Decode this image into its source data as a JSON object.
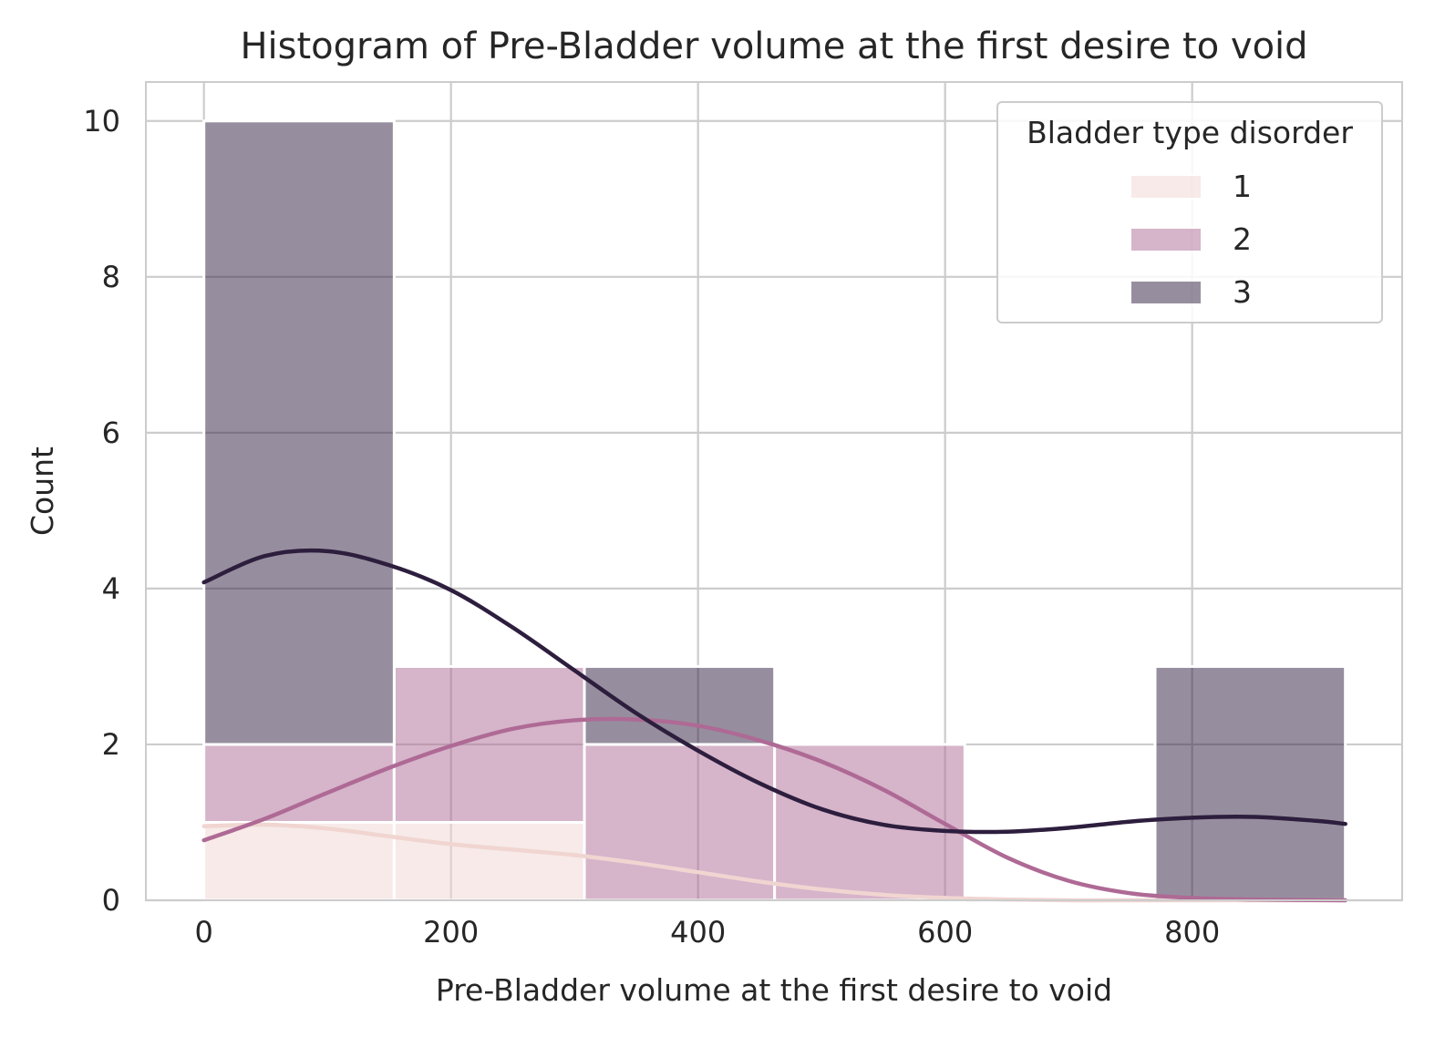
{
  "chart_data": {
    "type": "bar",
    "subtype": "stacked-histogram-with-kde",
    "title": "Histogram of Pre-Bladder volume at the first desire to void",
    "xlabel": "Pre-Bladder volume at the first desire to void",
    "ylabel": "Count",
    "xlim": [
      -47,
      970
    ],
    "ylim": [
      0,
      10.5
    ],
    "xticks": [
      0,
      200,
      400,
      600,
      800
    ],
    "yticks": [
      0,
      2,
      4,
      6,
      8,
      10
    ],
    "grid": true,
    "bin_edges": [
      0,
      154,
      308,
      462,
      616,
      770,
      924
    ],
    "legend": {
      "title": "Bladder type disorder",
      "position": "top-right"
    },
    "series": [
      {
        "name": "1",
        "color": "#f0d5d1",
        "counts": [
          1,
          1,
          0,
          0,
          0,
          0
        ],
        "kde": {
          "x": [
            0,
            50,
            100,
            150,
            200,
            250,
            300,
            350,
            400,
            450,
            500,
            550,
            600,
            650,
            700,
            750,
            800,
            850,
            924
          ],
          "y": [
            0.95,
            0.97,
            0.92,
            0.82,
            0.72,
            0.65,
            0.58,
            0.48,
            0.36,
            0.24,
            0.14,
            0.07,
            0.03,
            0.01,
            0.0,
            0.0,
            0.0,
            0.0,
            0.0
          ]
        }
      },
      {
        "name": "2",
        "color": "#ae6a95",
        "counts": [
          1,
          2,
          2,
          2,
          0,
          0
        ],
        "kde": {
          "x": [
            0,
            50,
            100,
            150,
            200,
            250,
            300,
            350,
            400,
            450,
            500,
            550,
            600,
            650,
            700,
            750,
            800,
            850,
            924
          ],
          "y": [
            0.77,
            1.05,
            1.38,
            1.7,
            1.98,
            2.2,
            2.31,
            2.32,
            2.24,
            2.05,
            1.78,
            1.42,
            0.98,
            0.55,
            0.25,
            0.09,
            0.03,
            0.01,
            0.0
          ]
        }
      },
      {
        "name": "3",
        "color": "#2d1e3e",
        "counts": [
          8,
          0,
          1,
          0,
          0,
          3
        ],
        "kde": {
          "x": [
            0,
            50,
            100,
            150,
            200,
            250,
            300,
            350,
            400,
            450,
            500,
            550,
            600,
            650,
            700,
            750,
            800,
            850,
            900,
            924
          ],
          "y": [
            4.08,
            4.42,
            4.48,
            4.3,
            3.98,
            3.5,
            2.95,
            2.4,
            1.92,
            1.5,
            1.17,
            0.97,
            0.89,
            0.88,
            0.93,
            1.01,
            1.06,
            1.07,
            1.02,
            0.98
          ]
        }
      }
    ]
  }
}
